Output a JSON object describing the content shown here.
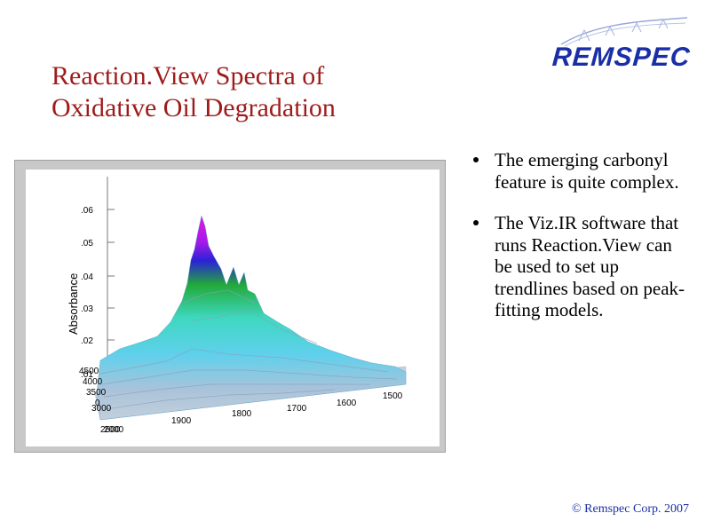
{
  "slide": {
    "title_lines": [
      "Reaction.View Spectra of",
      "Oxidative Oil Degradation"
    ],
    "logo": {
      "text": "REMSPEC",
      "brand_color": "#1a2fa6"
    },
    "bullets": [
      "The emerging carbonyl feature is quite complex.",
      "The Viz.IR software that runs Reaction.View can be used to set up trendlines based on peak-fitting models."
    ],
    "copyright": "© Remspec Corp. 2007",
    "title_color": "#9e1b1b"
  },
  "figure": {
    "ylabel": "Absorbance",
    "y_ticks": [
      ".06",
      ".05",
      ".04",
      ".03",
      ".02",
      ".01"
    ],
    "x_ticks": [
      "1900",
      "1800",
      "1700",
      "1600",
      "1500"
    ],
    "z_ticks": [
      "4500",
      "4000",
      "3500",
      "3000",
      "2500",
      "2000"
    ],
    "zero_label": "0"
  }
}
